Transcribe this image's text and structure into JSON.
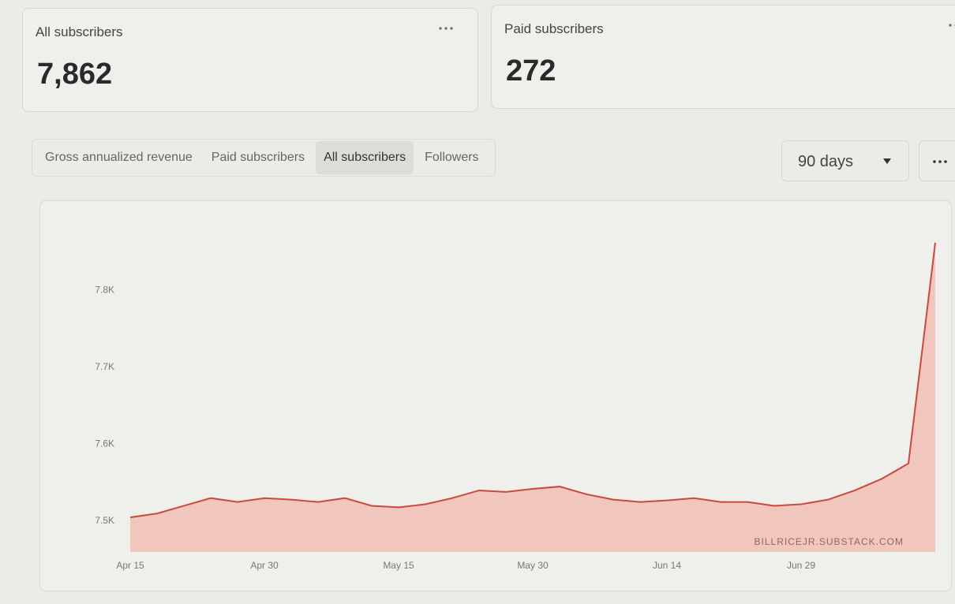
{
  "cards": [
    {
      "label": "All subscribers",
      "value": "7,862"
    },
    {
      "label": "Paid subscribers",
      "value": "272"
    }
  ],
  "tabs": [
    "Gross annualized revenue",
    "Paid subscribers",
    "All subscribers",
    "Followers"
  ],
  "range_select": "90 days",
  "chart_data": {
    "type": "area",
    "categories": [
      "Apr 15",
      null,
      null,
      null,
      null,
      "Apr 30",
      null,
      null,
      null,
      null,
      "May 15",
      null,
      null,
      null,
      null,
      "May 30",
      null,
      null,
      null,
      null,
      "Jun 14",
      null,
      null,
      null,
      null,
      "Jun 29",
      null,
      null,
      null,
      null,
      null
    ],
    "series": [
      {
        "name": "All subscribers",
        "color": "#c9493d",
        "fill": "#f1c7bd",
        "values": [
          7505,
          7510,
          7520,
          7530,
          7525,
          7530,
          7528,
          7525,
          7530,
          7520,
          7518,
          7522,
          7530,
          7540,
          7538,
          7542,
          7545,
          7535,
          7528,
          7525,
          7527,
          7530,
          7525,
          7525,
          7520,
          7522,
          7528,
          7540,
          7555,
          7575,
          7862
        ]
      }
    ],
    "ylim": [
      7460,
      7870
    ],
    "yticks": [
      {
        "value": 7500,
        "label": "7.5K"
      },
      {
        "value": 7600,
        "label": "7.6K"
      },
      {
        "value": 7700,
        "label": "7.7K"
      },
      {
        "value": 7800,
        "label": "7.8K"
      }
    ],
    "grid": false,
    "watermark": "BILLRICEJR.SUBSTACK.COM"
  }
}
